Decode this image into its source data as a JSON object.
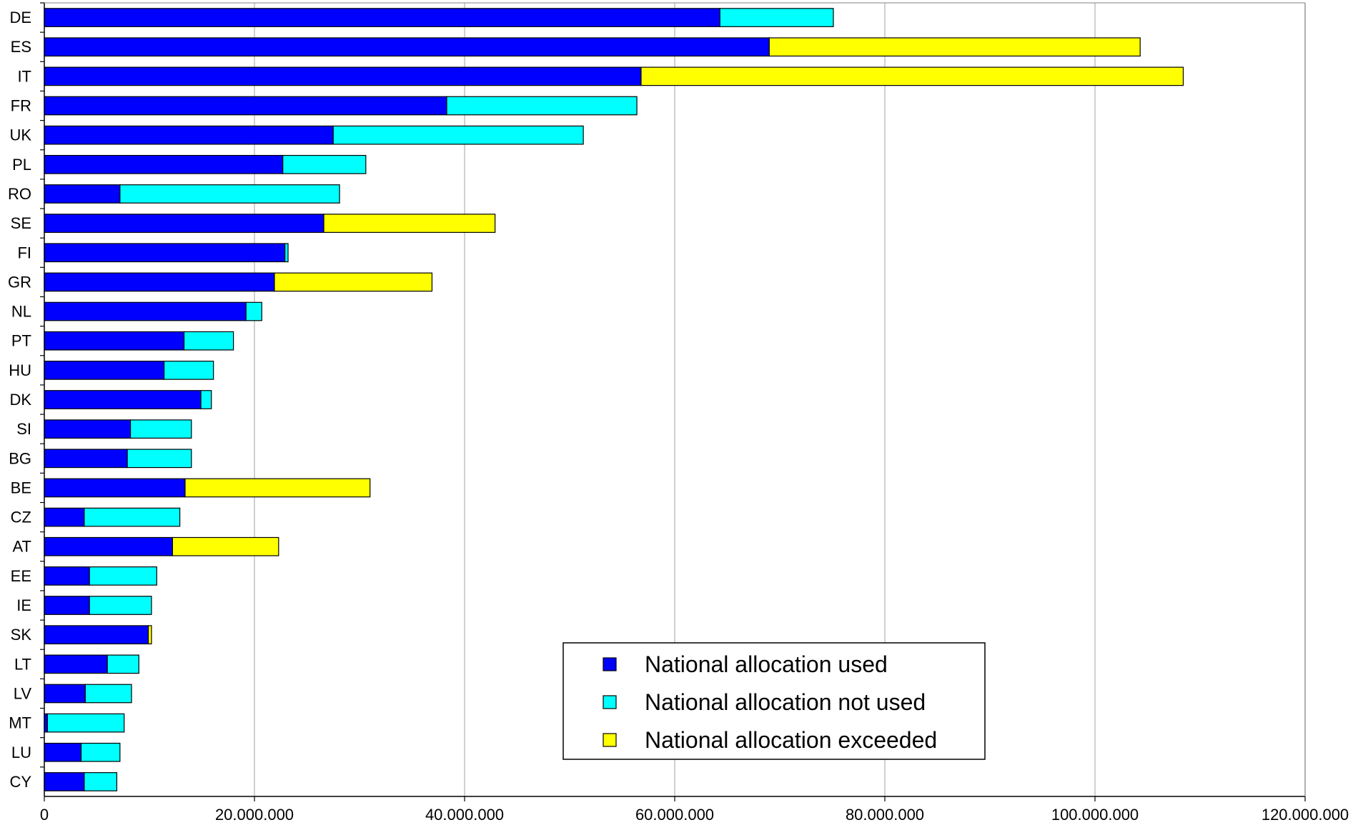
{
  "chart_data": {
    "type": "bar",
    "orientation": "horizontal",
    "stacked": true,
    "categories": [
      "DE",
      "ES",
      "IT",
      "FR",
      "UK",
      "PL",
      "RO",
      "SE",
      "FI",
      "GR",
      "NL",
      "PT",
      "HU",
      "DK",
      "SI",
      "BG",
      "BE",
      "CZ",
      "AT",
      "EE",
      "IE",
      "SK",
      "LT",
      "LV",
      "MT",
      "LU",
      "CY"
    ],
    "series": [
      {
        "name": "National allocation used",
        "color": "#0000FF",
        "values": [
          64300000,
          69000000,
          56800000,
          38300000,
          27500000,
          22700000,
          7200000,
          26600000,
          22900000,
          21900000,
          19200000,
          13300000,
          11400000,
          14900000,
          8200000,
          7900000,
          13400000,
          3800000,
          12200000,
          4300000,
          4300000,
          9900000,
          6000000,
          3900000,
          300000,
          3500000,
          3800000
        ]
      },
      {
        "name": "National allocation not used",
        "color": "#00FFFF",
        "values": [
          10800000,
          0,
          0,
          18100000,
          23800000,
          7900000,
          20900000,
          0,
          300000,
          0,
          1500000,
          4700000,
          4700000,
          1000000,
          5800000,
          6100000,
          0,
          9100000,
          0,
          6400000,
          5900000,
          0,
          3000000,
          4400000,
          7300000,
          3700000,
          3100000
        ]
      },
      {
        "name": "National allocation exceeded",
        "color": "#FFFF00",
        "values": [
          0,
          35300000,
          51600000,
          0,
          0,
          0,
          0,
          16300000,
          0,
          15000000,
          0,
          0,
          0,
          0,
          0,
          0,
          17600000,
          0,
          10100000,
          0,
          0,
          300000,
          0,
          0,
          0,
          0,
          0
        ]
      }
    ],
    "xlim": [
      0,
      120000000
    ],
    "x_ticks": [
      0,
      20000000,
      40000000,
      60000000,
      80000000,
      100000000,
      120000000
    ],
    "x_tick_labels": [
      "0",
      "20.000.000",
      "40.000.000",
      "60.000.000",
      "80.000.000",
      "100.000.000",
      "120.000.000"
    ],
    "title": "",
    "xlabel": "",
    "ylabel": "",
    "grid": "vertical",
    "legend": {
      "placement": "lower-right",
      "entries": [
        "National allocation used",
        "National allocation not used",
        "National allocation exceeded"
      ]
    }
  }
}
